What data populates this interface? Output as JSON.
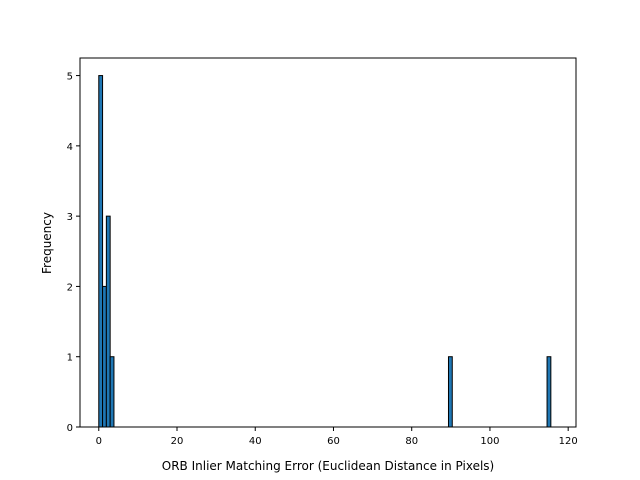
{
  "chart_data": {
    "type": "bar",
    "subtype": "histogram",
    "title": "",
    "xlabel": "ORB Inlier Matching Error (Euclidean Distance in Pixels)",
    "ylabel": "Frequency",
    "xlim": [
      -4.8,
      122.0
    ],
    "ylim": [
      0,
      5.25
    ],
    "xticks": [
      0,
      20,
      40,
      60,
      80,
      100,
      120
    ],
    "yticks": [
      0,
      1,
      2,
      3,
      4,
      5
    ],
    "bar_color": "#1f77b4",
    "edge_color": "#000000",
    "bins": [
      {
        "x0": 0.0,
        "x1": 0.97,
        "count": 5
      },
      {
        "x0": 0.97,
        "x1": 1.94,
        "count": 2
      },
      {
        "x0": 1.94,
        "x1": 2.91,
        "count": 3
      },
      {
        "x0": 2.91,
        "x1": 3.88,
        "count": 1
      },
      {
        "x0": 89.4,
        "x1": 90.37,
        "count": 1
      },
      {
        "x0": 114.6,
        "x1": 115.57,
        "count": 1
      }
    ]
  }
}
